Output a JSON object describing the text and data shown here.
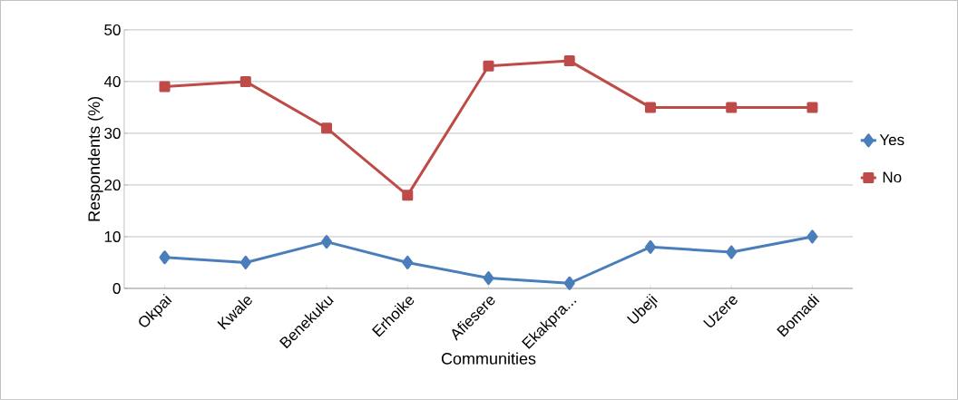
{
  "chart_data": {
    "type": "line",
    "xlabel": "Communities",
    "ylabel": "Respondents (%)",
    "categories": [
      "Okpai",
      "Kwale",
      "Benekuku",
      "Erhoike",
      "Afiesere",
      "Ekakpra...",
      "Ubeji",
      "Uzere",
      "Bomadi"
    ],
    "series": [
      {
        "name": "Yes",
        "color": "#4a7ebb",
        "marker": "diamond",
        "values": [
          6,
          5,
          9,
          5,
          2,
          1,
          8,
          7,
          10
        ]
      },
      {
        "name": "No",
        "color": "#be4b48",
        "marker": "square",
        "values": [
          39,
          40,
          31,
          18,
          43,
          44,
          35,
          35,
          35
        ]
      }
    ],
    "ylim": [
      0,
      50
    ],
    "yticks": [
      0,
      10,
      20,
      30,
      40,
      50
    ],
    "grid": "y",
    "legend": "right",
    "line_style": "solid"
  }
}
